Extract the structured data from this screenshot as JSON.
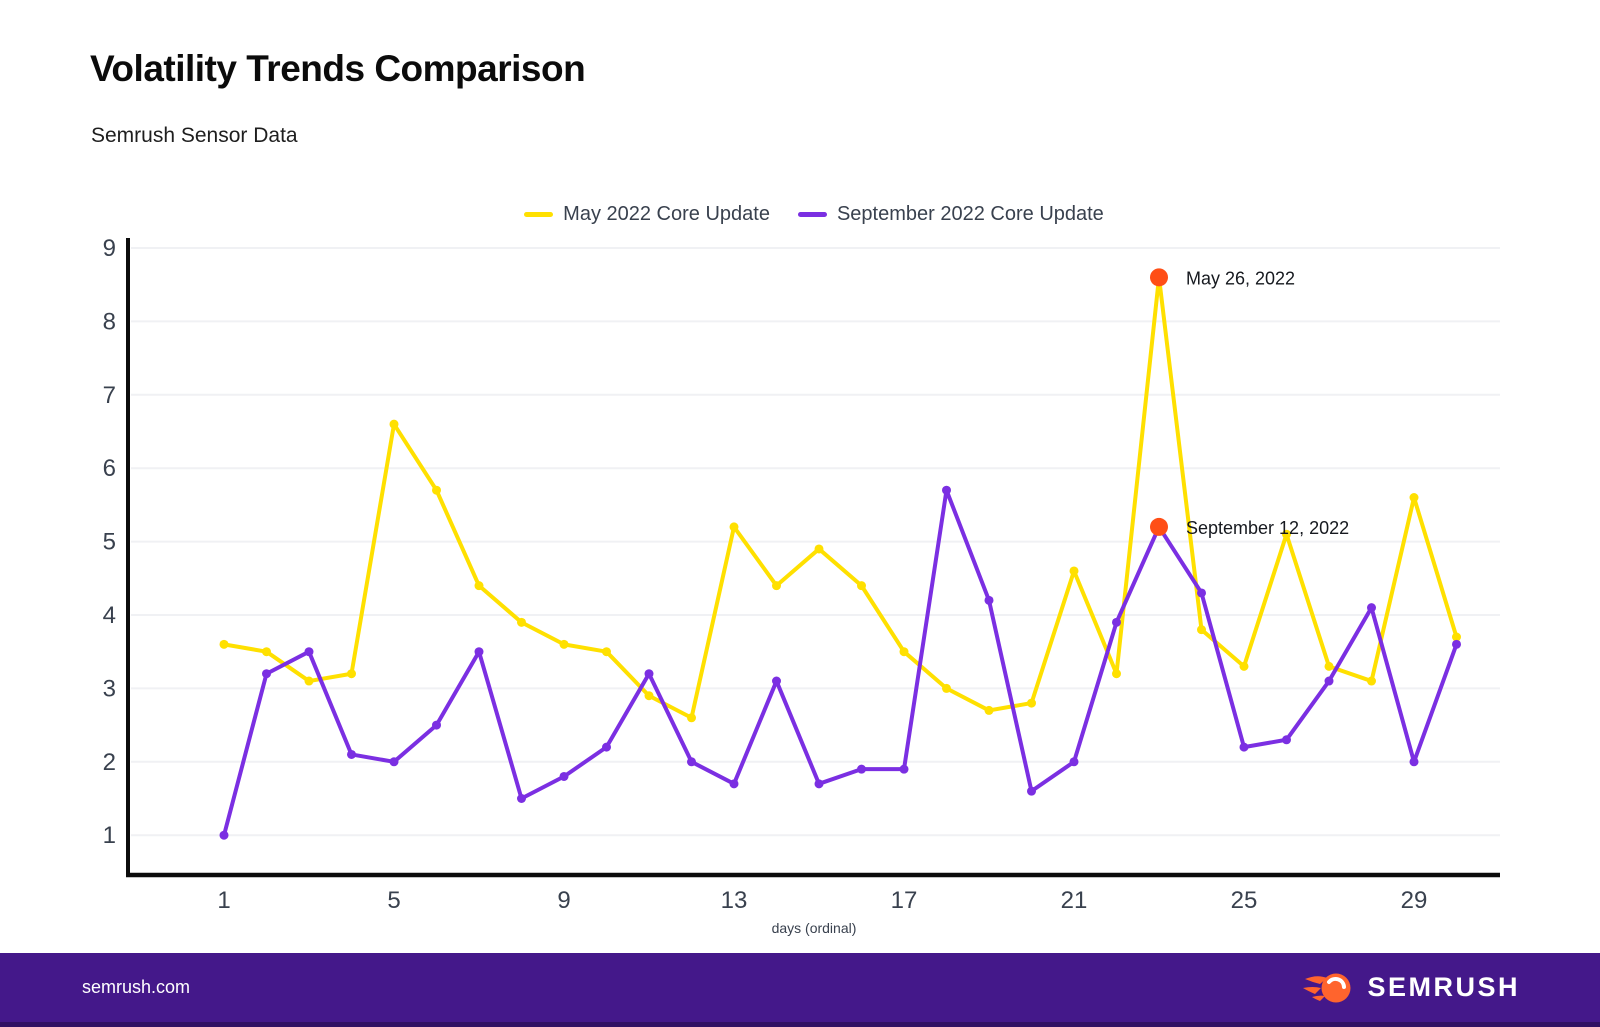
{
  "header": {
    "title": "Volatility Trends Comparison",
    "subtitle": "Semrush Sensor Data"
  },
  "chart_data": {
    "type": "line",
    "x": [
      1,
      2,
      3,
      4,
      5,
      6,
      7,
      8,
      9,
      10,
      11,
      12,
      13,
      14,
      15,
      16,
      17,
      18,
      19,
      20,
      21,
      22,
      23,
      24,
      25,
      26,
      27,
      28,
      29,
      30
    ],
    "series": [
      {
        "name": "May 2022 Core Update",
        "color": "#FFE000",
        "values": [
          3.6,
          3.5,
          3.1,
          3.2,
          6.6,
          5.7,
          4.4,
          3.9,
          3.6,
          3.5,
          2.9,
          2.6,
          5.2,
          4.4,
          4.9,
          4.4,
          3.5,
          3.0,
          2.7,
          2.8,
          4.6,
          3.2,
          8.6,
          3.8,
          3.3,
          5.1,
          3.3,
          3.1,
          5.6,
          3.7
        ]
      },
      {
        "name": "September 2022 Core Update",
        "color": "#7B2FE2",
        "values": [
          1.0,
          3.2,
          3.5,
          2.1,
          2.0,
          2.5,
          3.5,
          1.5,
          1.8,
          2.2,
          3.2,
          2.0,
          1.7,
          3.1,
          1.7,
          1.9,
          1.9,
          5.7,
          4.2,
          1.6,
          2.0,
          3.9,
          5.2,
          4.3,
          2.2,
          2.3,
          3.1,
          4.1,
          2.0,
          3.6
        ]
      }
    ],
    "annotations": [
      {
        "label": "May 26, 2022",
        "x": 23,
        "y": 8.6,
        "color": "#FF4E16"
      },
      {
        "label": "September 12, 2022",
        "x": 23,
        "y": 5.2,
        "color": "#FF4E16"
      }
    ],
    "xlabel": "days (ordinal)",
    "x_ticks": [
      1,
      5,
      9,
      13,
      17,
      21,
      25,
      29
    ],
    "y_ticks": [
      1,
      2,
      3,
      4,
      5,
      6,
      7,
      8,
      9
    ],
    "ylim": [
      0.45,
      9.1
    ],
    "grid": "horizontal",
    "legend_position": "top-center"
  },
  "colors": {
    "axis_text": "#39414E",
    "gridline": "#F0F1F4",
    "axis_line": "#0c0c0c",
    "annotation_text": "#16191F",
    "footer_bg": "#44188A",
    "footer_edge": "#311063",
    "brand_orange": "#FF642D"
  },
  "footer": {
    "site": "semrush.com",
    "brand": "SEMRUSH"
  }
}
